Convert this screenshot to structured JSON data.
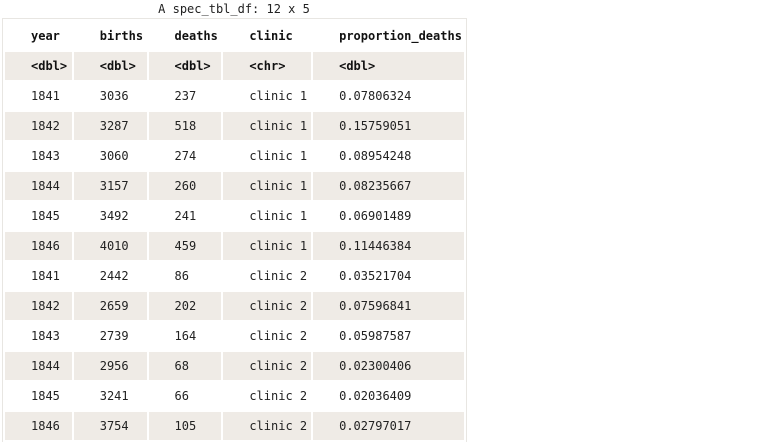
{
  "caption": "A spec_tbl_df: 12 x 5",
  "columns": [
    "year",
    "births",
    "deaths",
    "clinic",
    "proportion_deaths"
  ],
  "types": [
    "<dbl>",
    "<dbl>",
    "<dbl>",
    "<chr>",
    "<dbl>"
  ],
  "rows": [
    [
      "1841",
      "3036",
      "237",
      "clinic 1",
      "0.07806324"
    ],
    [
      "1842",
      "3287",
      "518",
      "clinic 1",
      "0.15759051"
    ],
    [
      "1843",
      "3060",
      "274",
      "clinic 1",
      "0.08954248"
    ],
    [
      "1844",
      "3157",
      "260",
      "clinic 1",
      "0.08235667"
    ],
    [
      "1845",
      "3492",
      "241",
      "clinic 1",
      "0.06901489"
    ],
    [
      "1846",
      "4010",
      "459",
      "clinic 1",
      "0.11446384"
    ],
    [
      "1841",
      "2442",
      "86",
      "clinic 2",
      "0.03521704"
    ],
    [
      "1842",
      "2659",
      "202",
      "clinic 2",
      "0.07596841"
    ],
    [
      "1843",
      "2739",
      "164",
      "clinic 2",
      "0.05987587"
    ],
    [
      "1844",
      "2956",
      "68",
      "clinic 2",
      "0.02300406"
    ],
    [
      "1845",
      "3241",
      "66",
      "clinic 2",
      "0.02036409"
    ],
    [
      "1846",
      "3754",
      "105",
      "clinic 2",
      "0.02797017"
    ]
  ]
}
